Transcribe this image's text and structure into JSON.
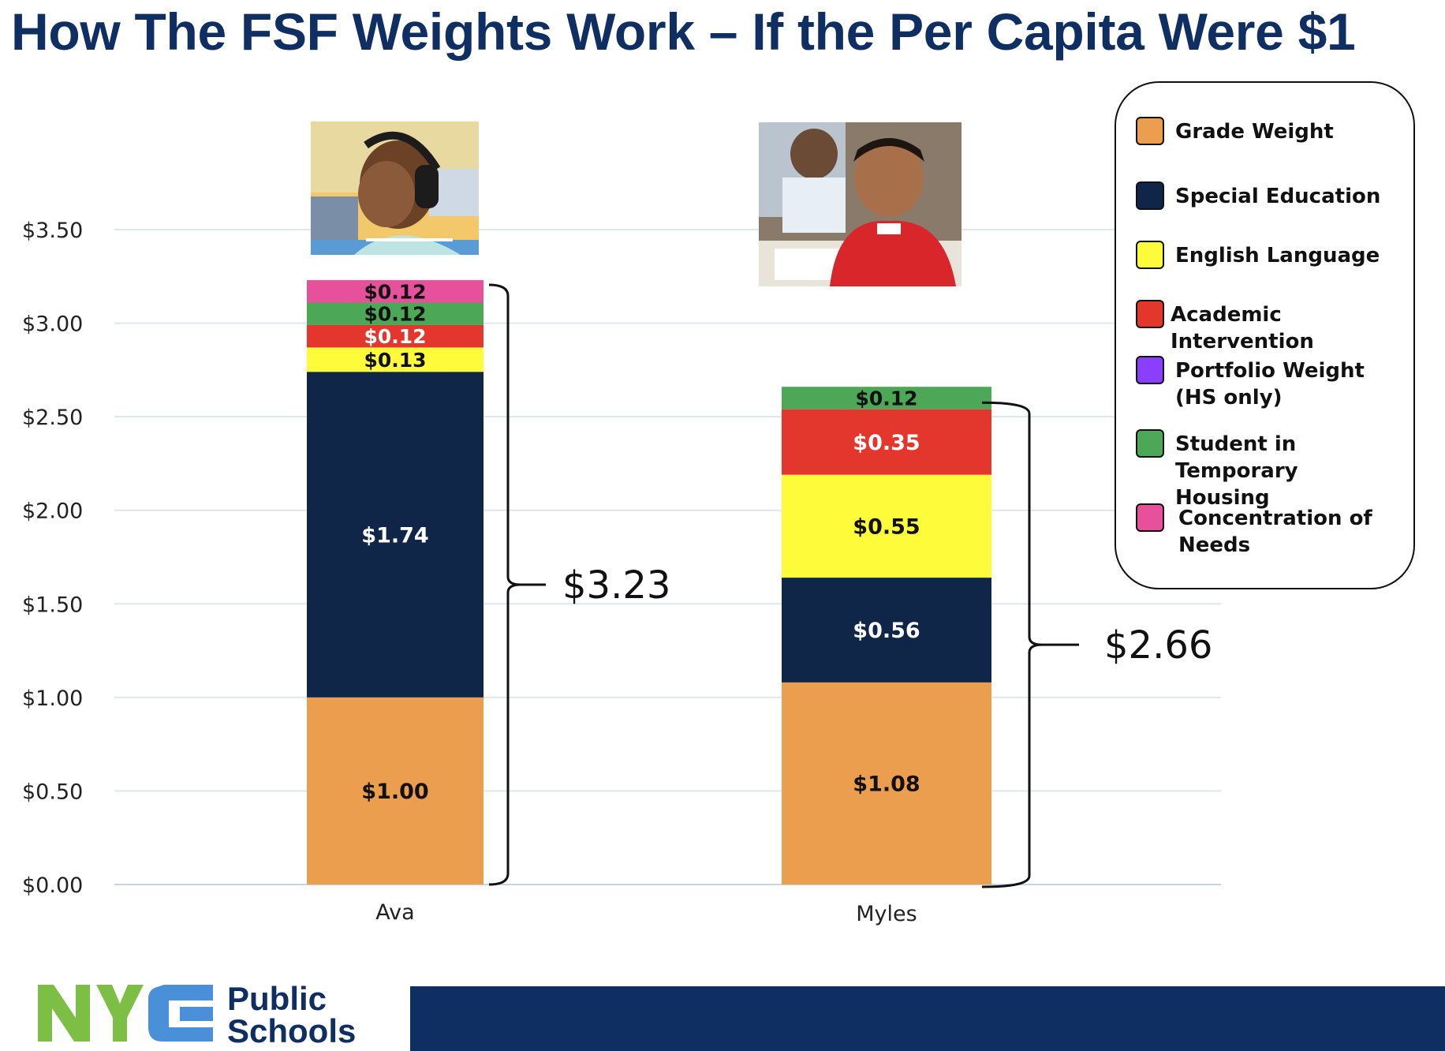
{
  "title": "How The FSF Weights Work – If the Per Capita Were $1",
  "colors": {
    "title": "#0f2f63",
    "grade_weight": "#eb9e4e",
    "special_education": "#0f2649",
    "english_language": "#fdfb3a",
    "academic_intervention": "#e3372d",
    "portfolio_weight": "#8a3ffc",
    "temporary_housing": "#4ca756",
    "concentration_of_needs": "#e7509b",
    "footer_bar": "#0f2f63",
    "logo_green": "#7dbf44",
    "logo_blue": "#4a90d9"
  },
  "chart_data": {
    "type": "bar",
    "stacked": true,
    "categories": [
      "Ava",
      "Myles"
    ],
    "y_tick_labels": [
      "$0.00",
      "$0.50",
      "$1.00",
      "$1.50",
      "$2.00",
      "$2.50",
      "$3.00",
      "$3.50"
    ],
    "y_ticks": [
      0,
      0.5,
      1.0,
      1.5,
      2.0,
      2.5,
      3.0,
      3.5
    ],
    "ylim": [
      0,
      3.5
    ],
    "grid": true,
    "series": [
      {
        "name": "Grade Weight",
        "color_key": "grade_weight",
        "label_color": "#111111",
        "values": [
          1.0,
          1.08
        ],
        "labels": [
          "$1.00",
          "$1.08"
        ]
      },
      {
        "name": "Special Education",
        "color_key": "special_education",
        "label_color": "#ffffff",
        "values": [
          1.74,
          0.56
        ],
        "labels": [
          "$1.74",
          "$0.56"
        ]
      },
      {
        "name": "English Language",
        "color_key": "english_language",
        "label_color": "#111111",
        "values": [
          0.13,
          0.55
        ],
        "labels": [
          "$0.13",
          "$0.55"
        ]
      },
      {
        "name": "Academic Intervention",
        "color_key": "academic_intervention",
        "label_color": "#ffffff",
        "values": [
          0.12,
          0.35
        ],
        "labels": [
          "$0.12",
          "$0.35"
        ]
      },
      {
        "name": "Portfolio Weight (HS only)",
        "color_key": "portfolio_weight",
        "label_color": "#ffffff",
        "values": [
          0,
          0
        ],
        "labels": [
          "",
          ""
        ]
      },
      {
        "name": "Student in Temporary Housing",
        "color_key": "temporary_housing",
        "label_color": "#111111",
        "values": [
          0.12,
          0.12
        ],
        "labels": [
          "$0.12",
          "$0.12"
        ]
      },
      {
        "name": "Concentration of Needs",
        "color_key": "concentration_of_needs",
        "label_color": "#111111",
        "values": [
          0.12,
          0
        ],
        "labels": [
          "$0.12",
          ""
        ]
      }
    ],
    "totals": [
      3.23,
      2.66
    ],
    "total_labels": [
      "$3.23",
      "$2.66"
    ],
    "legend_placement": "top-right"
  },
  "legend": {
    "items": [
      {
        "label": "Grade Weight",
        "color_key": "grade_weight"
      },
      {
        "label": "Special Education",
        "color_key": "special_education"
      },
      {
        "label": "English Language",
        "color_key": "english_language"
      },
      {
        "label": "Academic Intervention",
        "color_key": "academic_intervention"
      },
      {
        "label": "Portfolio Weight\n(HS only)",
        "color_key": "portfolio_weight"
      },
      {
        "label": "Student in Temporary\nHousing",
        "color_key": "temporary_housing"
      },
      {
        "label": "Concentration of\nNeeds",
        "color_key": "concentration_of_needs"
      }
    ]
  },
  "photos": [
    {
      "subject": "Ava",
      "description_icon": "student-photo"
    },
    {
      "subject": "Myles",
      "description_icon": "student-photo"
    }
  ],
  "footer": {
    "logo_text": "NYC",
    "logo_line1": "Public",
    "logo_line2": "Schools"
  }
}
